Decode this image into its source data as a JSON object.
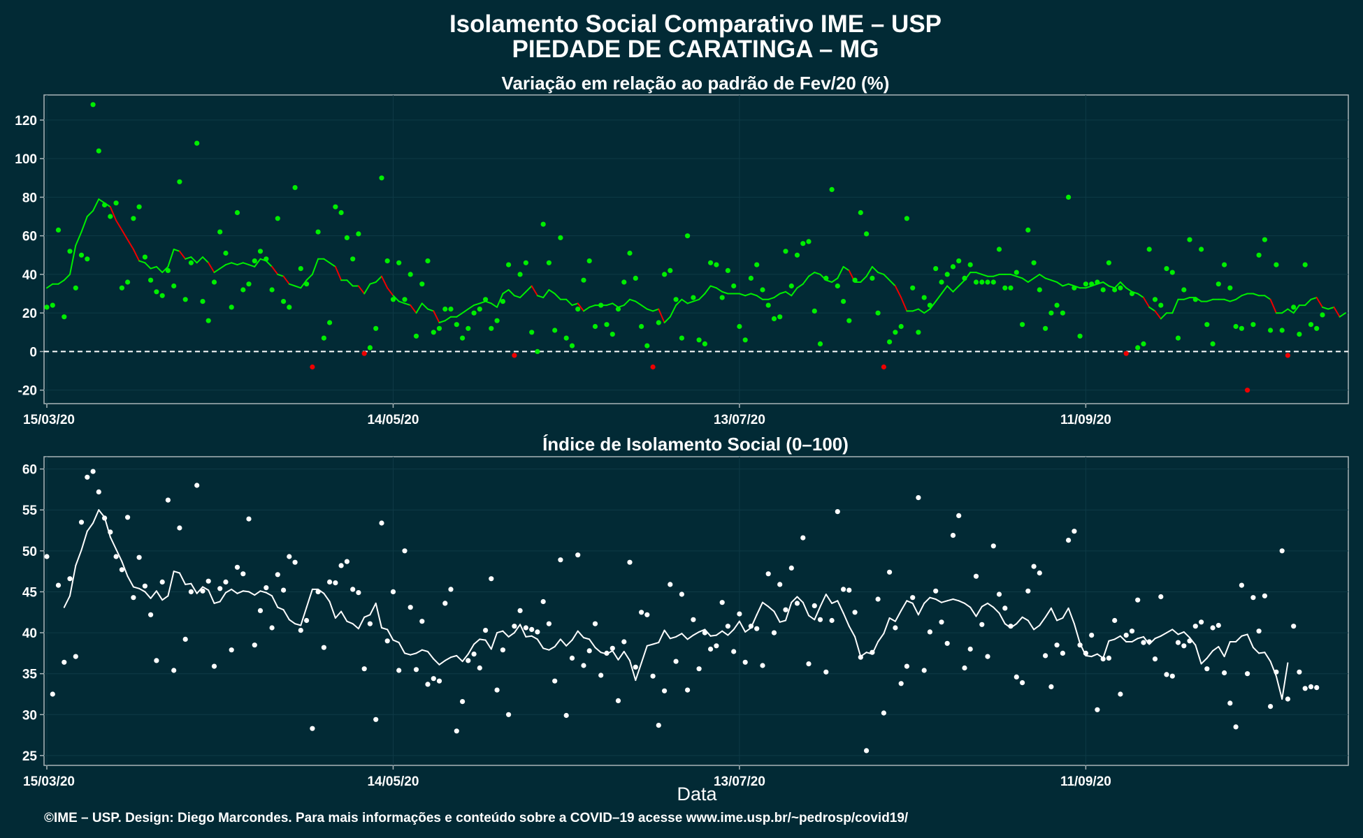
{
  "title_line1": "Isolamento Social Comparativo IME – USP",
  "title_line2": "PIEDADE DE CARATINGA – MG",
  "xlabel": "Data",
  "footer": "©IME – USP. Design: Diego Marcondes. Para mais informações e conteúdo sobre a COVID–19 acesse www.ime.usp.br/~pedrosp/covid19/",
  "colors": {
    "background": "#022a35",
    "positive": "#00ee00",
    "negative": "#ee0000",
    "index_points": "#ffffff",
    "frame": "#a9b4b8"
  },
  "chart_data": [
    {
      "type": "scatter",
      "title": "Variação em relação ao padrão de Fev/20 (%)",
      "xlabel": "",
      "ylabel": "",
      "x_start": "2020-03-15",
      "x_end": "2020-10-26",
      "x_ticks": [
        "15/03/20",
        "14/05/20",
        "13/07/20",
        "11/09/20"
      ],
      "y_ticks": [
        -20,
        0,
        20,
        40,
        60,
        80,
        100,
        120
      ],
      "ylim": [
        -27,
        133
      ],
      "reference_line": 0,
      "series": [
        {
          "values": [
            23,
            24,
            63,
            18,
            52,
            33,
            50,
            48,
            128,
            104,
            76,
            70,
            77,
            33,
            36,
            69,
            75,
            49,
            37,
            31,
            29,
            42,
            34,
            88,
            27,
            46,
            108,
            26,
            16,
            36,
            62,
            51,
            23,
            72,
            32,
            35,
            47,
            52,
            48,
            32,
            69,
            26,
            23,
            85,
            43,
            35,
            -8,
            62,
            7,
            15,
            75,
            72,
            59,
            48,
            61,
            -1,
            2,
            12,
            90,
            47,
            27,
            46,
            27,
            40,
            8,
            35,
            47,
            10,
            12,
            22,
            22,
            14,
            7,
            12,
            20,
            22,
            27,
            12,
            16,
            26,
            45,
            -2,
            40,
            46,
            10,
            0,
            66,
            46,
            11,
            59,
            7,
            3,
            22,
            37,
            47,
            13,
            24,
            14,
            9,
            22,
            36,
            51,
            38,
            13,
            3,
            -8,
            15,
            40,
            42,
            27,
            7,
            60,
            28,
            6,
            4,
            46,
            45,
            28,
            42,
            34,
            13,
            6,
            38,
            45,
            32,
            24,
            17,
            18,
            52,
            34,
            50,
            56,
            57,
            21,
            4,
            38,
            84,
            34,
            26,
            16,
            37,
            72,
            61,
            38,
            20,
            -8,
            5,
            10,
            13,
            69,
            33,
            10,
            28,
            24,
            43,
            36,
            40,
            44,
            47,
            38,
            45,
            36,
            36,
            36,
            36,
            53,
            33,
            33,
            41,
            14,
            63,
            46,
            32,
            12,
            20,
            24,
            20,
            80,
            33,
            8,
            35,
            35,
            36,
            32,
            46,
            32,
            33,
            -1,
            30,
            2,
            4,
            53,
            27,
            24,
            43,
            41,
            7,
            32,
            58,
            27,
            53,
            14,
            4,
            35,
            45,
            33,
            13,
            12,
            -20,
            14,
            50,
            58,
            11,
            45,
            11,
            -2,
            23,
            9,
            45,
            14,
            12,
            19
          ]
        },
        {
          "values": [
            33,
            35,
            35,
            37,
            40,
            55,
            62,
            70,
            73,
            79,
            77,
            75,
            68,
            63,
            58,
            53,
            47,
            46,
            43,
            44,
            41,
            44,
            53,
            52,
            48,
            49,
            46,
            49,
            46,
            41,
            43,
            45,
            46,
            45,
            46,
            45,
            44,
            48,
            47,
            44,
            40,
            39,
            35,
            34,
            33,
            37,
            40,
            48,
            48,
            46,
            44,
            37,
            37,
            34,
            34,
            30,
            35,
            36,
            39,
            33,
            29,
            26,
            25,
            24,
            20,
            25,
            22,
            21,
            15,
            16,
            18,
            18,
            20,
            22,
            24,
            25,
            26,
            25,
            23,
            30,
            32,
            29,
            28,
            31,
            34,
            29,
            28,
            32,
            30,
            27,
            27,
            24,
            25,
            21,
            23,
            24,
            24,
            24,
            25,
            23,
            24,
            27,
            26,
            24,
            22,
            21,
            22,
            15,
            18,
            24,
            27,
            25,
            26,
            27,
            30,
            34,
            33,
            31,
            30,
            30,
            30,
            29,
            30,
            29,
            27,
            27,
            28,
            30,
            31,
            29,
            33,
            35,
            39,
            41,
            40,
            37,
            36,
            38,
            44,
            42,
            36,
            36,
            39,
            44,
            41,
            40,
            37,
            34,
            28,
            21,
            21,
            22,
            20,
            22,
            26,
            30,
            34,
            31,
            34,
            37,
            41,
            41,
            40,
            39,
            39,
            40,
            40,
            40,
            39,
            38,
            36,
            38,
            40,
            38,
            37,
            36,
            34,
            35,
            34,
            33,
            33,
            34,
            35,
            36,
            34,
            33,
            36,
            33,
            31,
            30,
            28,
            23,
            21,
            17,
            20,
            20,
            27,
            27,
            28,
            28,
            26,
            26,
            27,
            27,
            27,
            26,
            27,
            29,
            30,
            30,
            29,
            29,
            27,
            20,
            20,
            22,
            20,
            24,
            24,
            27,
            28,
            23,
            22,
            23,
            18,
            20
          ]
        }
      ]
    },
    {
      "type": "scatter",
      "title": "Índice de Isolamento Social (0–100)",
      "xlabel": "Data",
      "ylabel": "",
      "x_start": "2020-03-15",
      "x_end": "2020-10-26",
      "x_ticks": [
        "15/03/20",
        "14/05/20",
        "13/07/20",
        "11/09/20"
      ],
      "y_ticks": [
        25,
        30,
        35,
        40,
        45,
        50,
        55,
        60
      ],
      "ylim": [
        23.8,
        61.5
      ],
      "series": [
        {
          "values": [
            49.3,
            32.5,
            45.8,
            36.4,
            46.6,
            37.1,
            53.5,
            59,
            59.7,
            57.2,
            54,
            52.3,
            49.3,
            47.7,
            54.1,
            44.3,
            49.2,
            45.7,
            42.2,
            36.6,
            46.2,
            56.2,
            35.4,
            52.8,
            39.2,
            45,
            58,
            45.1,
            46.3,
            35.9,
            45.4,
            46.2,
            37.9,
            48,
            47.2,
            53.9,
            38.5,
            42.7,
            45.5,
            40.6,
            47.1,
            45.2,
            49.3,
            48.6,
            40.3,
            41.5,
            28.3,
            45,
            38.2,
            46.2,
            46.1,
            48.2,
            48.7,
            45.3,
            44.9,
            35.6,
            41.1,
            29.4,
            53.4,
            39,
            45,
            35.4,
            50,
            43.1,
            35.5,
            41.4,
            33.7,
            34.4,
            34.1,
            43.6,
            45.3,
            28,
            31.6,
            36.6,
            37.4,
            35.7,
            40.3,
            46.6,
            33,
            37.9,
            30,
            40.8,
            42.7,
            40.6,
            40.4,
            40.1,
            43.8,
            41.1,
            34.1,
            48.9,
            29.9,
            36.9,
            49.5,
            36,
            37.8,
            41.1,
            34.8,
            37.5,
            38.1,
            31.7,
            38.9,
            48.6,
            35.8,
            42.5,
            42.2,
            34.7,
            28.7,
            32.9,
            45.9,
            36.5,
            44.7,
            33,
            41.6,
            35.6,
            40,
            38,
            38.4,
            43.7,
            40.8,
            37.7,
            42.3,
            36.4,
            40.8,
            40.5,
            36,
            47.2,
            40,
            45.9,
            42.8,
            47.9,
            43.6,
            51.6,
            36.2,
            43.3,
            41.6,
            35.2,
            41.5,
            54.8,
            45.3,
            45.2,
            42.5,
            37,
            25.6,
            37.6,
            44.1,
            30.2,
            47.4,
            40.6,
            33.8,
            35.9,
            44.3,
            56.5,
            35.4,
            40.1,
            45.1,
            41.3,
            38.7,
            51.9,
            54.3,
            35.7,
            38,
            46.9,
            41,
            37.1,
            50.6,
            44.7,
            43,
            40.8,
            34.6,
            33.9,
            45.1,
            48.1,
            47.3,
            37.2,
            33.4,
            38.5,
            37.5,
            51.3,
            52.4,
            38.5,
            37.5,
            39.7,
            30.6,
            36.8,
            36.9,
            41.5,
            32.5,
            39.7,
            40.2,
            44,
            38.8,
            38.9,
            36.8,
            44.4,
            34.9,
            34.7,
            38.8,
            38.4,
            39,
            40.8,
            41.3,
            35.6,
            40.6,
            40.9,
            35.1,
            31.4,
            28.5,
            45.8,
            35,
            44.3,
            40.2,
            44.5,
            31,
            35.2,
            50,
            31.9,
            40.8,
            35.2,
            33.2,
            33.4,
            33.3
          ]
        },
        {
          "values": [
            null,
            null,
            null,
            43.1,
            44.5,
            48.2,
            50.1,
            52.4,
            53.4,
            55,
            54.1,
            51.7,
            50.2,
            48.7,
            46.9,
            45.6,
            45.4,
            45,
            44.2,
            45.1,
            44,
            44.5,
            47.5,
            47.3,
            45.9,
            46,
            44.8,
            45.6,
            45.2,
            43.6,
            43.8,
            44.9,
            45.3,
            44.8,
            45.1,
            45,
            44.6,
            45.1,
            44.9,
            44.5,
            43.1,
            42.8,
            41.6,
            41.1,
            40.9,
            43.1,
            45.3,
            45.3,
            44.8,
            43.8,
            41.8,
            42.6,
            41.4,
            41.1,
            40.5,
            41.9,
            42.2,
            43.6,
            40.6,
            40.4,
            39.1,
            38.8,
            37.5,
            37.3,
            37.5,
            37.9,
            37.7,
            36.8,
            36.1,
            36.6,
            37,
            37.2,
            36.5,
            37.4,
            38.6,
            39.2,
            39.1,
            38,
            40,
            40.2,
            39.5,
            40,
            41,
            39.5,
            39.6,
            39.2,
            38.1,
            37.9,
            38.3,
            39.2,
            38.4,
            39.1,
            40.2,
            39.4,
            39.2,
            38.2,
            37.6,
            37.4,
            37.8,
            36.7,
            37.7,
            36.6,
            34.2,
            36.3,
            38.4,
            38.6,
            38.8,
            40.3,
            39.3,
            39.5,
            39.9,
            39.2,
            39.7,
            40.1,
            40.4,
            39.6,
            39.7,
            40.2,
            39.7,
            40.4,
            41.4,
            40.1,
            40.6,
            42.2,
            43.7,
            43.2,
            42.6,
            41.3,
            41.5,
            43.7,
            44.4,
            43.7,
            42.1,
            41.6,
            43.2,
            44.7,
            43.6,
            43.9,
            42.4,
            40.8,
            39.5,
            37.1,
            37.6,
            37.4,
            38.9,
            39.9,
            41.8,
            41.4,
            42.7,
            43.9,
            43.6,
            42.2,
            43.6,
            44.3,
            44.1,
            43.7,
            43.9,
            44.1,
            43.9,
            43.6,
            43.1,
            42,
            43.2,
            43.6,
            43.1,
            42.4,
            41.1,
            40.6,
            41.1,
            41.9,
            41.5,
            40.4,
            40.9,
            41.9,
            43,
            41.5,
            41.8,
            43,
            41.1,
            38.7,
            37.2,
            37.1,
            37.4,
            36.9,
            39,
            39.2,
            39.6,
            38.9,
            38.9,
            39.3,
            39.5,
            38.6,
            39.3,
            39.6,
            40,
            40.4,
            39.8,
            40.1,
            39.4,
            38.5,
            36.2,
            36.9,
            37.8,
            38.3,
            37.1,
            38.9,
            38.9,
            39.6,
            39.8,
            38.2,
            37.5,
            37.6,
            36.5,
            34.7,
            31.9,
            36.3
          ]
        }
      ]
    }
  ]
}
